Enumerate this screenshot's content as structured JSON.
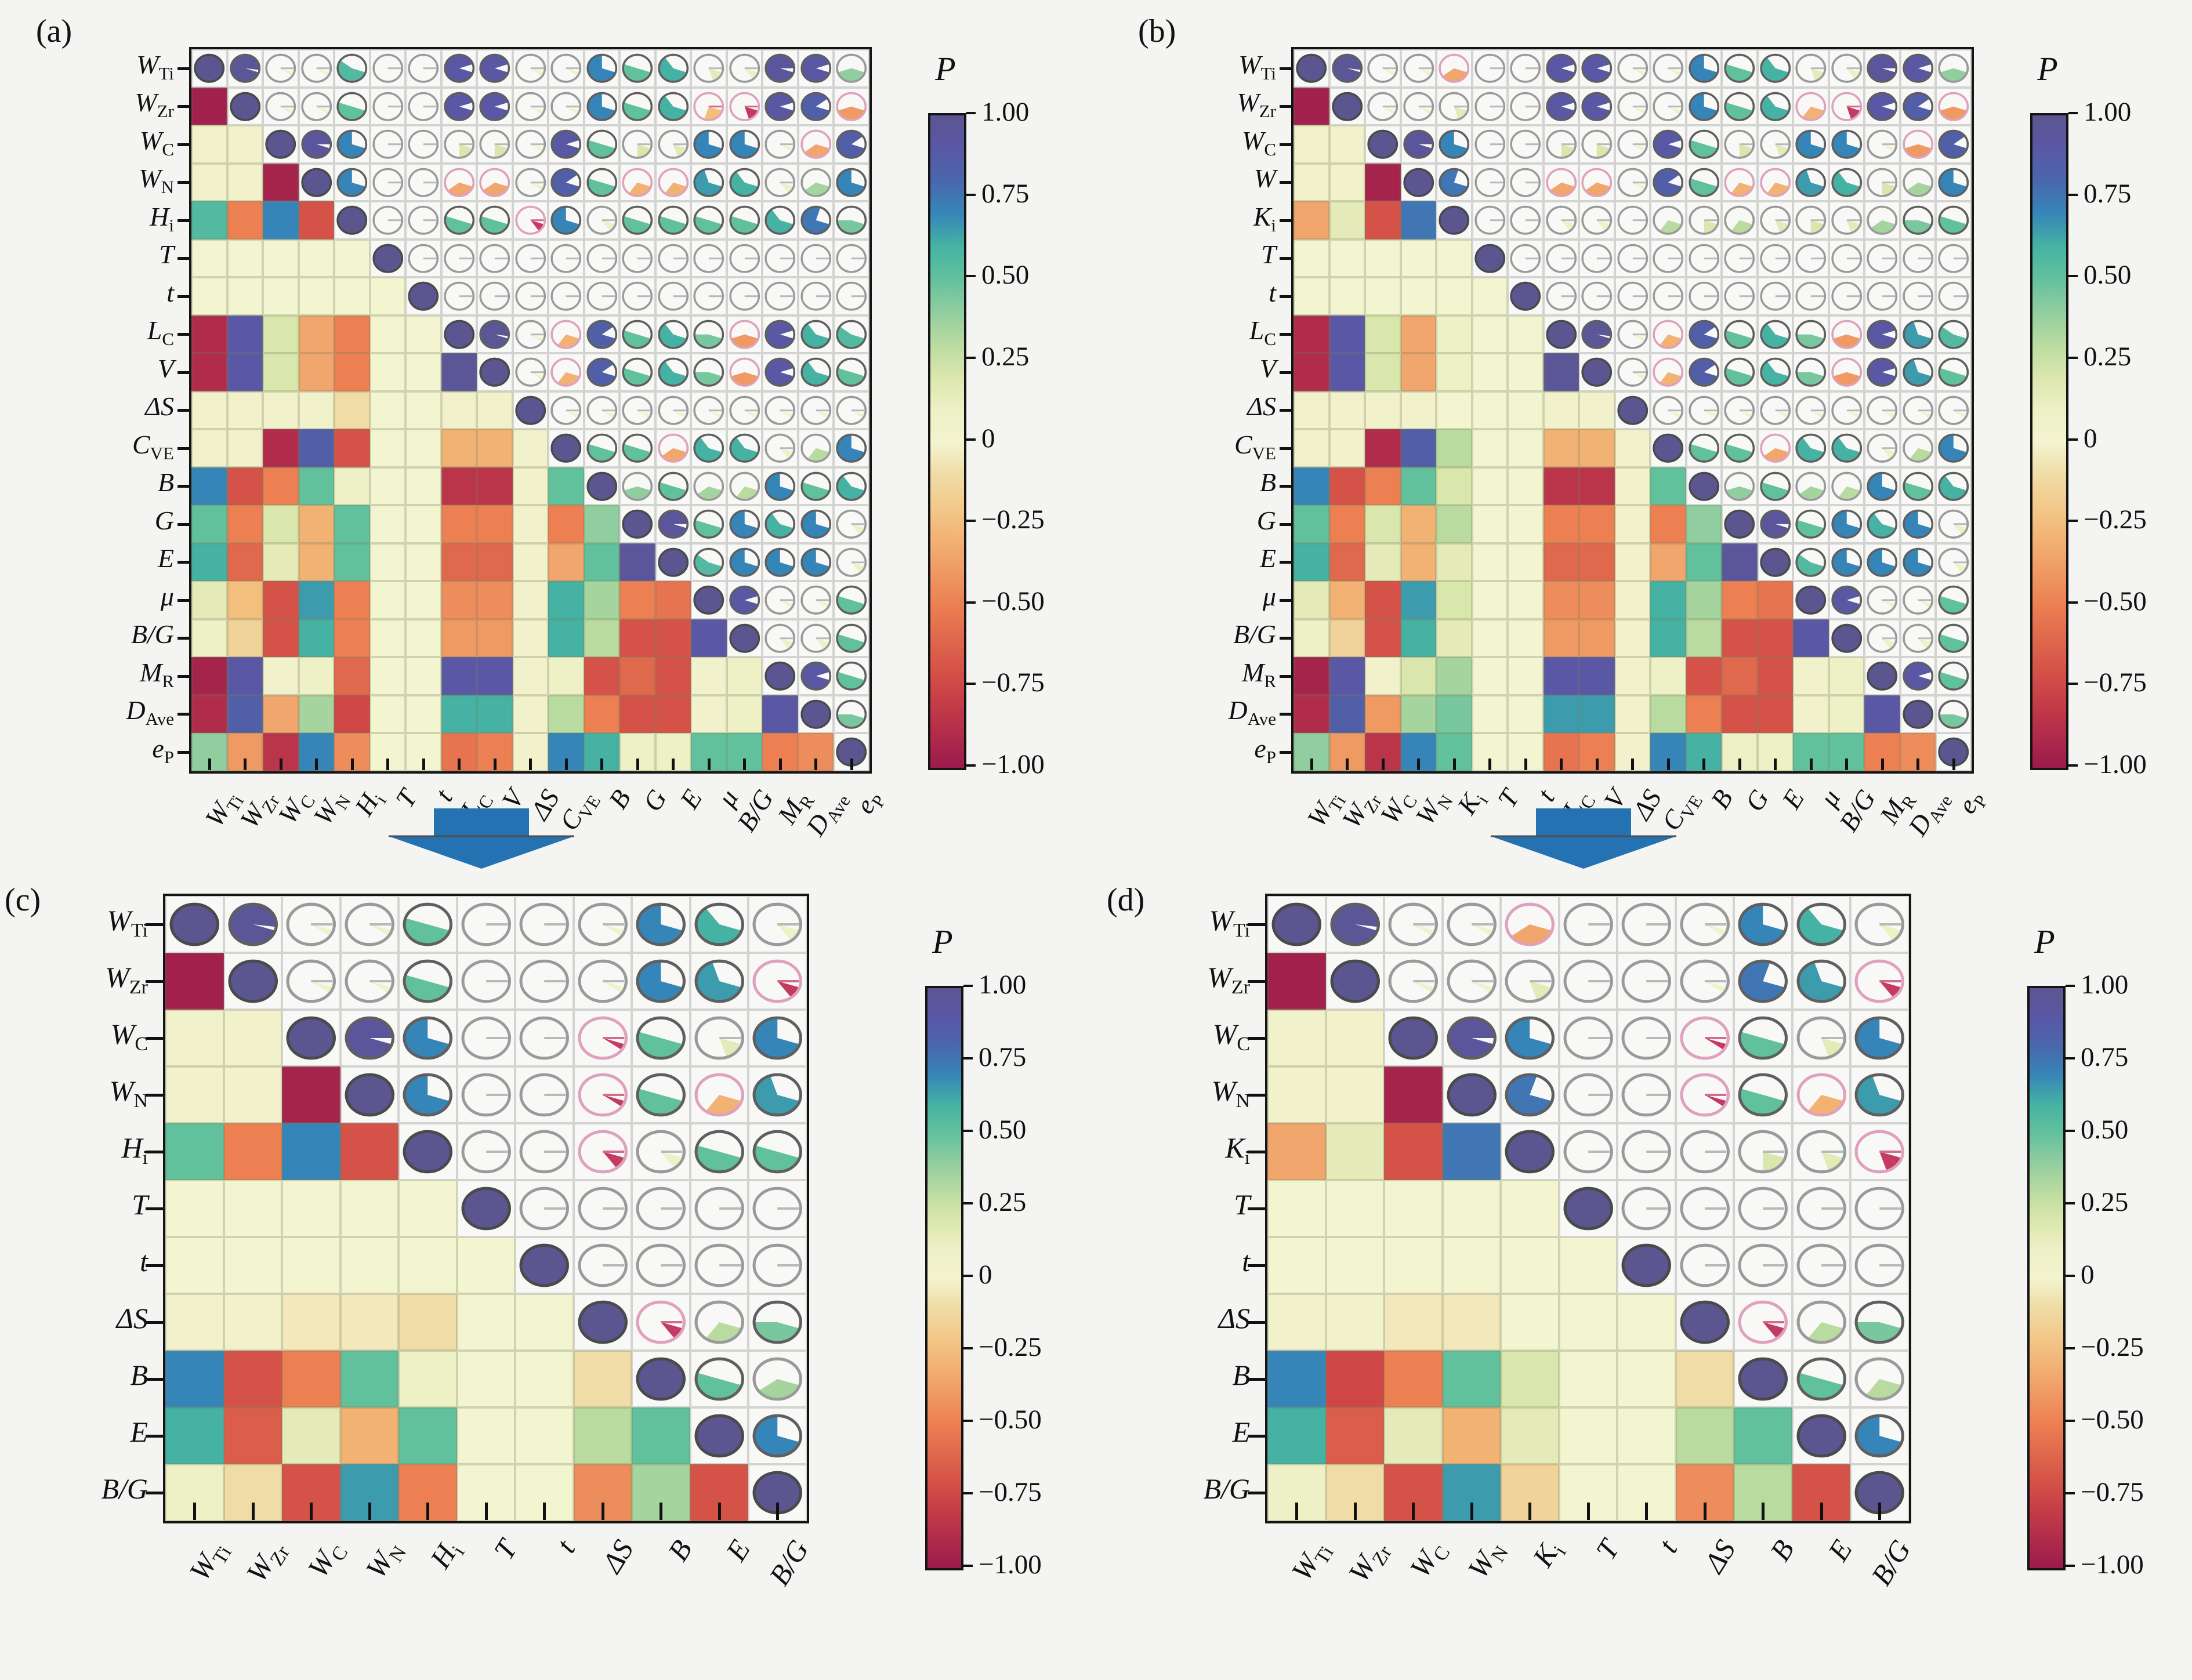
{
  "figure": {
    "background": "#f4f4f2"
  },
  "colorbar": {
    "title": "P",
    "ticks": [
      "1.00",
      "0.75",
      "0.50",
      "0.25",
      "0",
      "−0.25",
      "−0.50",
      "−0.75",
      "−1.00"
    ]
  },
  "colors": {
    "background": "#f4f4f2",
    "frame": "#141414",
    "arrow": "#2472b2",
    "arrow_edge": "#4f4f4f",
    "upper_cell_bg": "#f8f8f6",
    "pie_ring_positive": "#9a9a9a",
    "pie_ring_negative": "#dfa1bd",
    "small_negative_wedge": "#c43b62",
    "colormap_stops": [
      {
        "v": -1.0,
        "c": "#9b1b4d"
      },
      {
        "v": -0.75,
        "c": "#cf4646"
      },
      {
        "v": -0.5,
        "c": "#ec8052"
      },
      {
        "v": -0.25,
        "c": "#f3bf7d"
      },
      {
        "v": -0.1,
        "c": "#f0dca6"
      },
      {
        "v": 0.0,
        "c": "#f3f4d0"
      },
      {
        "v": 0.1,
        "c": "#eef0c6"
      },
      {
        "v": 0.25,
        "c": "#cfe2a0"
      },
      {
        "v": 0.4,
        "c": "#90cd9f"
      },
      {
        "v": 0.5,
        "c": "#62c19d"
      },
      {
        "v": 0.6,
        "c": "#45b2a4"
      },
      {
        "v": 0.7,
        "c": "#3685b8"
      },
      {
        "v": 0.8,
        "c": "#4967ad"
      },
      {
        "v": 0.9,
        "c": "#5a57a5"
      },
      {
        "v": 1.0,
        "c": "#5b5590"
      }
    ]
  },
  "chart_data": [
    {
      "type": "heatmap",
      "id": "a",
      "title": "(a)",
      "note": "correlation matrix, lower triangle = colored cells, upper triangle = pie glyphs, diagonal = 1",
      "ylim": [
        -1,
        1
      ],
      "labels_y": [
        {
          "t": "W",
          "s": "Ti"
        },
        {
          "t": "W",
          "s": "Zr"
        },
        {
          "t": "W",
          "s": "C"
        },
        {
          "t": "W",
          "s": "N"
        },
        {
          "t": "H",
          "s": "i"
        },
        {
          "t": "T"
        },
        {
          "t": "t"
        },
        {
          "t": "L",
          "s": "C"
        },
        {
          "t": "V"
        },
        {
          "t": "ΔS"
        },
        {
          "t": "C",
          "s": "VE"
        },
        {
          "t": "B"
        },
        {
          "t": "G"
        },
        {
          "t": "E"
        },
        {
          "t": "μ"
        },
        {
          "t": "B/G"
        },
        {
          "t": "M",
          "s": "R"
        },
        {
          "t": "D",
          "s": "Ave"
        },
        {
          "t": "e",
          "s": "P"
        }
      ],
      "labels_x": [
        {
          "t": "W",
          "s": "Ti"
        },
        {
          "t": "W",
          "s": "Zr"
        },
        {
          "t": "W",
          "s": "C"
        },
        {
          "t": "W",
          "s": "N"
        },
        {
          "t": "H",
          "s": "i"
        },
        {
          "t": "T"
        },
        {
          "t": "t"
        },
        {
          "t": "L",
          "s": "C"
        },
        {
          "t": "V"
        },
        {
          "t": "ΔS"
        },
        {
          "t": "C",
          "s": "VE"
        },
        {
          "t": "B"
        },
        {
          "t": "G"
        },
        {
          "t": "E"
        },
        {
          "t": "μ"
        },
        {
          "t": "B/G"
        },
        {
          "t": "M",
          "s": "R"
        },
        {
          "t": "D",
          "s": "Ave"
        },
        {
          "t": "e",
          "s": "P"
        }
      ],
      "lower_triangle": [
        [
          -0.97
        ],
        [
          0.05,
          0.05
        ],
        [
          0.05,
          0.05,
          -0.95
        ],
        [
          0.55,
          -0.5,
          0.7,
          -0.7
        ],
        [
          0,
          0,
          0,
          0,
          0
        ],
        [
          0,
          0,
          0,
          0,
          0,
          0
        ],
        [
          -0.9,
          0.9,
          0.2,
          -0.35,
          -0.5,
          0,
          0
        ],
        [
          -0.9,
          0.9,
          0.2,
          -0.35,
          -0.5,
          0,
          0,
          0.97
        ],
        [
          0.05,
          0.05,
          0.05,
          0.05,
          -0.1,
          0,
          0,
          0.05,
          0.05
        ],
        [
          0.05,
          0.05,
          -0.9,
          0.85,
          -0.7,
          0,
          0,
          -0.3,
          -0.3,
          0.05
        ],
        [
          0.7,
          -0.7,
          -0.5,
          0.5,
          0.1,
          0,
          0,
          -0.85,
          -0.85,
          0.05,
          0.5
        ],
        [
          0.5,
          -0.5,
          0.2,
          -0.3,
          0.5,
          0,
          0,
          -0.5,
          -0.5,
          0.05,
          -0.5,
          0.4
        ],
        [
          0.6,
          -0.6,
          0.15,
          -0.3,
          0.5,
          0,
          0,
          -0.6,
          -0.6,
          0.05,
          -0.35,
          0.5,
          0.95
        ],
        [
          0.15,
          -0.25,
          -0.7,
          0.65,
          -0.5,
          0,
          0,
          -0.45,
          -0.45,
          0.05,
          0.6,
          0.35,
          -0.5,
          -0.55
        ],
        [
          0.1,
          -0.15,
          -0.7,
          0.6,
          -0.5,
          0,
          0,
          -0.4,
          -0.4,
          0.05,
          0.6,
          0.3,
          -0.7,
          -0.7,
          0.9
        ],
        [
          -0.95,
          0.9,
          0.05,
          0.1,
          -0.6,
          0,
          0,
          0.9,
          0.9,
          0.05,
          0.1,
          -0.7,
          -0.6,
          -0.7,
          0.05,
          0.1
        ],
        [
          -0.9,
          0.85,
          -0.35,
          0.35,
          -0.75,
          0,
          0,
          0.6,
          0.6,
          0.05,
          0.3,
          -0.5,
          -0.7,
          -0.7,
          0.05,
          0.1,
          0.9
        ],
        [
          0.4,
          -0.4,
          -0.85,
          0.7,
          -0.45,
          0,
          0,
          -0.55,
          -0.5,
          0.05,
          0.7,
          0.6,
          0.1,
          0.1,
          0.5,
          0.5,
          -0.5,
          -0.45
        ]
      ]
    },
    {
      "type": "heatmap",
      "id": "b",
      "title": "(b)",
      "ylim": [
        -1,
        1
      ],
      "labels_y": [
        {
          "t": "W",
          "s": "Ti"
        },
        {
          "t": "W",
          "s": "Zr"
        },
        {
          "t": "W",
          "s": "C"
        },
        {
          "t": "W"
        },
        {
          "t": "K",
          "s": "i"
        },
        {
          "t": "T"
        },
        {
          "t": "t"
        },
        {
          "t": "L",
          "s": "C"
        },
        {
          "t": "V"
        },
        {
          "t": "ΔS"
        },
        {
          "t": "C",
          "s": "VE"
        },
        {
          "t": "B"
        },
        {
          "t": "G"
        },
        {
          "t": "E"
        },
        {
          "t": "μ"
        },
        {
          "t": "B/G"
        },
        {
          "t": "M",
          "s": "R"
        },
        {
          "t": "D",
          "s": "Ave"
        },
        {
          "t": "e",
          "s": "P"
        }
      ],
      "labels_x": [
        {
          "t": "W",
          "s": "Ti"
        },
        {
          "t": "W",
          "s": "Zr"
        },
        {
          "t": "W",
          "s": "C"
        },
        {
          "t": "W",
          "s": "N"
        },
        {
          "t": "K",
          "s": "i"
        },
        {
          "t": "T"
        },
        {
          "t": "t"
        },
        {
          "t": "L",
          "s": "C"
        },
        {
          "t": "V"
        },
        {
          "t": "ΔS"
        },
        {
          "t": "C",
          "s": "VE"
        },
        {
          "t": "B"
        },
        {
          "t": "G"
        },
        {
          "t": "E"
        },
        {
          "t": "μ"
        },
        {
          "t": "B/G"
        },
        {
          "t": "M",
          "s": "R"
        },
        {
          "t": "D",
          "s": "Ave"
        },
        {
          "t": "e",
          "s": "P"
        }
      ],
      "lower_triangle": [
        [
          -0.97
        ],
        [
          0.05,
          0.05
        ],
        [
          0.05,
          0.05,
          -0.95
        ],
        [
          -0.35,
          0.15,
          -0.7,
          0.75
        ],
        [
          0,
          0,
          0,
          0,
          0
        ],
        [
          0,
          0,
          0,
          0,
          0,
          0
        ],
        [
          -0.9,
          0.9,
          0.2,
          -0.35,
          0.1,
          0,
          0
        ],
        [
          -0.9,
          0.9,
          0.2,
          -0.35,
          0.1,
          0,
          0,
          0.97
        ],
        [
          0.05,
          0.05,
          0.05,
          0.05,
          0,
          0,
          0,
          0.05,
          0.05
        ],
        [
          0.05,
          0.05,
          -0.9,
          0.85,
          0.3,
          0,
          0,
          -0.3,
          -0.3,
          0.05
        ],
        [
          0.7,
          -0.7,
          -0.5,
          0.5,
          0.2,
          0,
          0,
          -0.85,
          -0.85,
          0.05,
          0.5
        ],
        [
          0.5,
          -0.5,
          0.2,
          -0.3,
          0.3,
          0,
          0,
          -0.5,
          -0.5,
          0.05,
          -0.5,
          0.4
        ],
        [
          0.6,
          -0.6,
          0.15,
          -0.3,
          0.15,
          0,
          0,
          -0.6,
          -0.6,
          0.05,
          -0.35,
          0.5,
          0.95
        ],
        [
          0.15,
          -0.3,
          -0.7,
          0.65,
          0.2,
          0,
          0,
          -0.45,
          -0.45,
          0.05,
          0.6,
          0.35,
          -0.5,
          -0.55
        ],
        [
          0.1,
          -0.15,
          -0.7,
          0.6,
          0.15,
          0,
          0,
          -0.4,
          -0.4,
          0.05,
          0.6,
          0.3,
          -0.7,
          -0.7,
          0.9
        ],
        [
          -0.95,
          0.9,
          0.05,
          0.2,
          0.35,
          0,
          0,
          0.9,
          0.9,
          0.05,
          0.1,
          -0.7,
          -0.6,
          -0.7,
          0.05,
          0.1
        ],
        [
          -0.9,
          0.85,
          -0.4,
          0.35,
          0.45,
          0,
          0,
          0.65,
          0.65,
          0.05,
          0.3,
          -0.5,
          -0.7,
          -0.7,
          0.05,
          0.1,
          0.9
        ],
        [
          0.4,
          -0.4,
          -0.85,
          0.7,
          0.5,
          0,
          0,
          -0.55,
          -0.5,
          0.05,
          0.7,
          0.6,
          0.1,
          0.1,
          0.5,
          0.5,
          -0.5,
          -0.45
        ]
      ]
    },
    {
      "type": "heatmap",
      "id": "c",
      "title": "(c)",
      "ylim": [
        -1,
        1
      ],
      "labels_y": [
        {
          "t": "W",
          "s": "Ti"
        },
        {
          "t": "W",
          "s": "Zr"
        },
        {
          "t": "W",
          "s": "C"
        },
        {
          "t": "W",
          "s": "N"
        },
        {
          "t": "H",
          "s": "i"
        },
        {
          "t": "T"
        },
        {
          "t": "t"
        },
        {
          "t": "ΔS"
        },
        {
          "t": "B"
        },
        {
          "t": "E"
        },
        {
          "t": "B/G"
        }
      ],
      "labels_x": [
        {
          "t": "W",
          "s": "Ti"
        },
        {
          "t": "W",
          "s": "Zr"
        },
        {
          "t": "W",
          "s": "C"
        },
        {
          "t": "W",
          "s": "N"
        },
        {
          "t": "H",
          "s": "i"
        },
        {
          "t": "T"
        },
        {
          "t": "t"
        },
        {
          "t": "ΔS"
        },
        {
          "t": "B"
        },
        {
          "t": "E"
        },
        {
          "t": "B/G"
        }
      ],
      "lower_triangle": [
        [
          -0.97
        ],
        [
          0.05,
          0.05
        ],
        [
          0.05,
          0.05,
          -0.95
        ],
        [
          0.5,
          -0.5,
          0.7,
          -0.7
        ],
        [
          0,
          0,
          0,
          0,
          0
        ],
        [
          0,
          0,
          0,
          0,
          0,
          0
        ],
        [
          0.05,
          0.05,
          -0.05,
          -0.05,
          -0.1,
          0,
          0
        ],
        [
          0.7,
          -0.7,
          -0.5,
          0.5,
          0.1,
          0,
          0,
          -0.1
        ],
        [
          0.6,
          -0.65,
          0.15,
          -0.3,
          0.5,
          0,
          0,
          0.3,
          0.5
        ],
        [
          0.1,
          -0.1,
          -0.7,
          0.65,
          -0.5,
          0,
          0,
          -0.45,
          0.35,
          -0.7
        ]
      ]
    },
    {
      "type": "heatmap",
      "id": "d",
      "title": "(d)",
      "ylim": [
        -1,
        1
      ],
      "labels_y": [
        {
          "t": "W",
          "s": "Ti"
        },
        {
          "t": "W",
          "s": "Zr"
        },
        {
          "t": "W",
          "s": "C"
        },
        {
          "t": "W",
          "s": "N"
        },
        {
          "t": "K",
          "s": "i"
        },
        {
          "t": "T"
        },
        {
          "t": "t"
        },
        {
          "t": "ΔS"
        },
        {
          "t": "B"
        },
        {
          "t": "E"
        },
        {
          "t": "B/G"
        }
      ],
      "labels_x": [
        {
          "t": "W",
          "s": "Ti"
        },
        {
          "t": "W",
          "s": "Zr"
        },
        {
          "t": "W",
          "s": "C"
        },
        {
          "t": "W",
          "s": "N"
        },
        {
          "t": "K",
          "s": "i"
        },
        {
          "t": "T"
        },
        {
          "t": "t"
        },
        {
          "t": "ΔS"
        },
        {
          "t": "B"
        },
        {
          "t": "E"
        },
        {
          "t": "B/G"
        }
      ],
      "lower_triangle": [
        [
          -0.97
        ],
        [
          0.05,
          0.05
        ],
        [
          0.05,
          0.05,
          -0.95
        ],
        [
          -0.35,
          0.15,
          -0.7,
          0.75
        ],
        [
          0,
          0,
          0,
          0,
          0
        ],
        [
          0,
          0,
          0,
          0,
          0,
          0
        ],
        [
          0.05,
          0.05,
          -0.05,
          -0.05,
          0,
          0,
          0
        ],
        [
          0.7,
          -0.75,
          -0.5,
          0.5,
          0.2,
          0,
          0,
          -0.1
        ],
        [
          0.6,
          -0.65,
          0.15,
          -0.3,
          0.15,
          0,
          0,
          0.3,
          0.5
        ],
        [
          0.1,
          -0.1,
          -0.7,
          0.65,
          -0.15,
          0,
          0,
          -0.45,
          0.3,
          -0.7
        ]
      ]
    }
  ]
}
